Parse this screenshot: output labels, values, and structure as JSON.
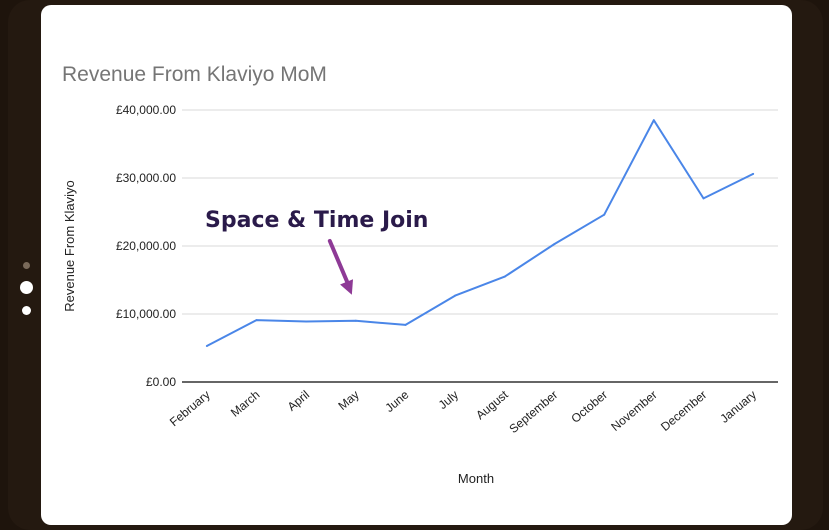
{
  "colors": {
    "line": "#4a86e8",
    "arrow": "#8e3a96",
    "grid": "#d9d9d9",
    "baseline": "#333333"
  },
  "chart_data": {
    "type": "line",
    "title": "Revenue From Klaviyo MoM",
    "xlabel": "Month",
    "ylabel": "Revenue From Klaviyo",
    "categories": [
      "February",
      "March",
      "April",
      "May",
      "June",
      "July",
      "August",
      "September",
      "October",
      "November",
      "December",
      "January"
    ],
    "series": [
      {
        "values": [
          5300,
          9100,
          8900,
          9000,
          8400,
          12700,
          15500,
          20300,
          24600,
          38500,
          27000,
          30600
        ]
      }
    ],
    "ylim": [
      0,
      40000
    ],
    "yticks": [
      0,
      10000,
      20000,
      30000,
      40000
    ],
    "ytick_labels": [
      "£0.00",
      "£10,000.00",
      "£20,000.00",
      "£30,000.00",
      "£40,000.00"
    ],
    "grid": true,
    "legend": "none",
    "annotation": {
      "text": "Space & Time Join",
      "points_to": "May"
    }
  }
}
